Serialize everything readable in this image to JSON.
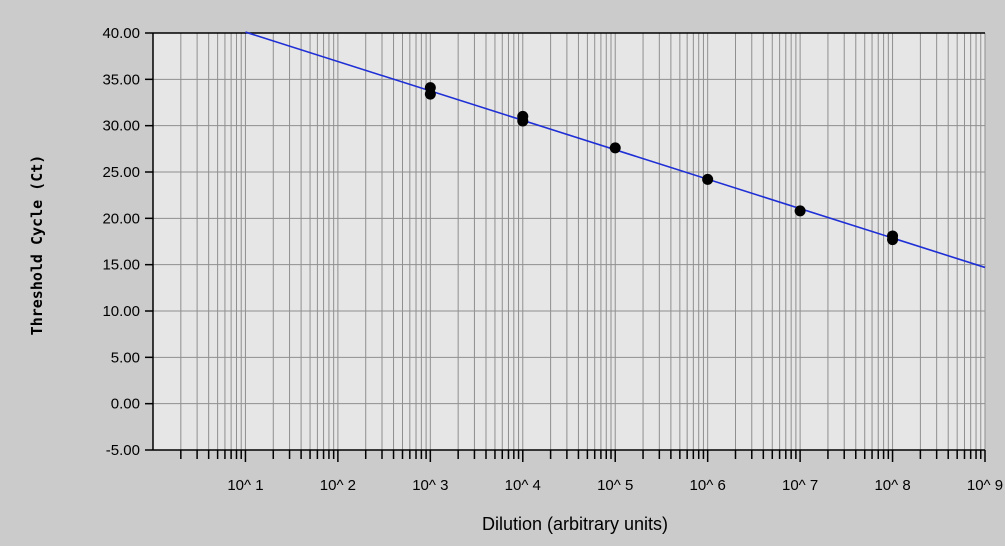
{
  "chart_data": {
    "type": "scatter",
    "title": "",
    "xlabel": "Dilution (arbitrary units)",
    "ylabel": "Threshold Cycle (Ct)",
    "x_scale": "log",
    "xlim": [
      1,
      1000000000
    ],
    "ylim": [
      -5,
      40
    ],
    "y_ticks": [
      "40.00",
      "35.00",
      "30.00",
      "25.00",
      "20.00",
      "15.00",
      "10.00",
      "5.00",
      "0.00",
      "-5.00"
    ],
    "x_tick_labels": [
      "10^ 1",
      "10^ 2",
      "10^ 3",
      "10^ 4",
      "10^ 5",
      "10^ 6",
      "10^ 7",
      "10^ 8",
      "10^ 9"
    ],
    "grid": true,
    "series": [
      {
        "type": "scatter",
        "color": "#000000",
        "points": [
          {
            "x": 1000,
            "y": 34.1
          },
          {
            "x": 1000,
            "y": 33.4
          },
          {
            "x": 10000,
            "y": 31.0
          },
          {
            "x": 10000,
            "y": 30.5
          },
          {
            "x": 100000,
            "y": 27.6
          },
          {
            "x": 1000000,
            "y": 24.2
          },
          {
            "x": 10000000,
            "y": 20.8
          },
          {
            "x": 100000000,
            "y": 18.1
          },
          {
            "x": 100000000,
            "y": 17.7
          }
        ]
      },
      {
        "type": "line",
        "color": "#1f2fd6",
        "points": [
          {
            "x": 10,
            "y": 40.1
          },
          {
            "x": 1000000000,
            "y": 14.7
          }
        ]
      }
    ]
  }
}
